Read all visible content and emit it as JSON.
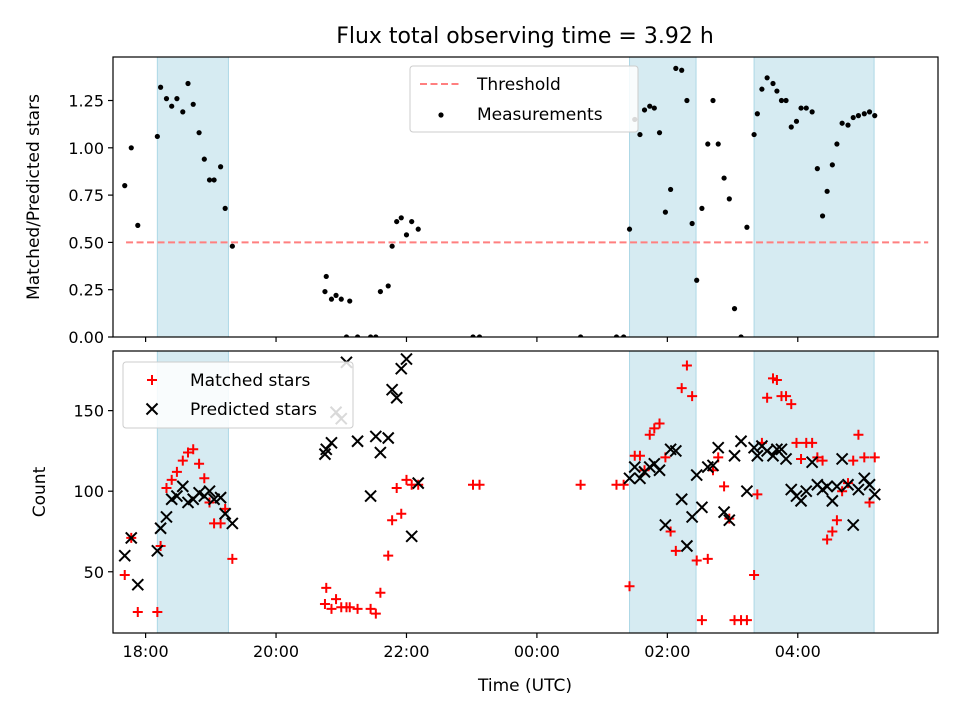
{
  "figure": {
    "title": "Flux total observing time = 3.92 h",
    "xlabel": "Time (UTC)",
    "xlim": [
      17.5,
      30.15
    ],
    "xticks": [
      {
        "value": 18,
        "label": "18:00"
      },
      {
        "value": 20,
        "label": "20:00"
      },
      {
        "value": 22,
        "label": "22:00"
      },
      {
        "value": 24,
        "label": "00:00"
      },
      {
        "value": 26,
        "label": "02:00"
      },
      {
        "value": 28,
        "label": "04:00"
      }
    ],
    "shaded_intervals": [
      [
        18.18,
        19.27
      ],
      [
        25.42,
        26.44
      ],
      [
        27.33,
        29.17
      ]
    ],
    "shade_color": "#add8e6"
  },
  "chart_data": [
    {
      "type": "scatter",
      "ylabel": "Matched/Predicted stars",
      "ylim": [
        0,
        1.48
      ],
      "yticks": [
        0.0,
        0.25,
        0.5,
        0.75,
        1.0,
        1.25
      ],
      "ytick_labels": [
        "0.00",
        "0.25",
        "0.50",
        "0.75",
        "1.00",
        "1.25"
      ],
      "legend_position": "top-center",
      "threshold": {
        "name": "Threshold",
        "value": 0.5,
        "x_range": [
          17.7,
          30.0
        ],
        "color": "#ff7f7f"
      },
      "series": [
        {
          "name": "Measurements",
          "color": "#000000",
          "x": [
            17.68,
            17.78,
            17.88,
            18.18,
            18.23,
            18.32,
            18.4,
            18.48,
            18.57,
            18.65,
            18.73,
            18.82,
            18.9,
            18.98,
            19.05,
            19.15,
            19.22,
            19.33,
            20.75,
            20.77,
            20.85,
            20.92,
            21.0,
            21.08,
            21.13,
            21.25,
            21.45,
            21.53,
            21.6,
            21.72,
            21.78,
            21.85,
            21.92,
            22.0,
            22.08,
            22.18,
            23.02,
            23.12,
            24.67,
            25.22,
            25.33,
            25.42,
            25.5,
            25.58,
            25.65,
            25.73,
            25.8,
            25.88,
            25.97,
            26.05,
            26.13,
            26.22,
            26.3,
            26.38,
            26.45,
            26.53,
            26.62,
            26.7,
            26.78,
            26.87,
            26.95,
            27.03,
            27.13,
            27.22,
            27.33,
            27.38,
            27.45,
            27.53,
            27.62,
            27.68,
            27.75,
            27.82,
            27.9,
            27.98,
            28.05,
            28.13,
            28.22,
            28.3,
            28.38,
            28.45,
            28.53,
            28.6,
            28.68,
            28.77,
            28.85,
            28.93,
            29.02,
            29.1,
            29.18
          ],
          "y": [
            0.8,
            1.0,
            0.59,
            1.06,
            1.32,
            1.26,
            1.22,
            1.26,
            1.19,
            1.34,
            1.23,
            1.08,
            0.94,
            0.83,
            0.83,
            0.9,
            0.68,
            0.48,
            0.24,
            0.32,
            0.2,
            0.22,
            0.2,
            0.0,
            0.19,
            0.0,
            0.0,
            0.0,
            0.24,
            0.27,
            0.48,
            0.61,
            0.63,
            0.54,
            0.61,
            0.57,
            0.0,
            0.0,
            0.0,
            0.0,
            0.0,
            0.57,
            1.15,
            1.07,
            1.2,
            1.22,
            1.21,
            1.08,
            0.66,
            0.78,
            1.42,
            1.41,
            1.25,
            0.6,
            0.3,
            0.68,
            1.02,
            1.25,
            1.02,
            0.84,
            0.73,
            0.15,
            0.0,
            0.58,
            1.07,
            1.18,
            1.31,
            1.37,
            1.34,
            1.3,
            1.25,
            1.25,
            1.11,
            1.14,
            1.21,
            1.21,
            1.19,
            0.89,
            0.64,
            0.77,
            0.91,
            1.02,
            1.13,
            1.12,
            1.16,
            1.17,
            1.18,
            1.19,
            1.17
          ]
        }
      ]
    },
    {
      "type": "scatter",
      "ylabel": "Count",
      "ylim": [
        12,
        187
      ],
      "yticks": [
        50,
        100,
        150
      ],
      "ytick_labels": [
        "50",
        "100",
        "150"
      ],
      "legend_position": "top-left",
      "series": [
        {
          "name": "Matched stars",
          "color": "#ff0000",
          "marker": "plus",
          "x": [
            17.68,
            17.78,
            17.88,
            18.18,
            18.23,
            18.32,
            18.4,
            18.48,
            18.57,
            18.65,
            18.73,
            18.82,
            18.9,
            18.98,
            19.05,
            19.15,
            19.22,
            19.33,
            20.75,
            20.77,
            20.85,
            20.92,
            21.0,
            21.08,
            21.13,
            21.25,
            21.45,
            21.53,
            21.6,
            21.72,
            21.78,
            21.85,
            21.92,
            22.0,
            22.08,
            22.18,
            23.02,
            23.12,
            24.67,
            25.22,
            25.33,
            25.42,
            25.5,
            25.58,
            25.65,
            25.73,
            25.8,
            25.88,
            25.97,
            26.05,
            26.13,
            26.22,
            26.3,
            26.38,
            26.45,
            26.53,
            26.62,
            26.7,
            26.78,
            26.87,
            26.95,
            27.03,
            27.13,
            27.22,
            27.33,
            27.38,
            27.45,
            27.53,
            27.62,
            27.68,
            27.75,
            27.82,
            27.9,
            27.98,
            28.05,
            28.13,
            28.22,
            28.3,
            28.38,
            28.45,
            28.53,
            28.6,
            28.68,
            28.77,
            28.85,
            28.93,
            29.02,
            29.1,
            29.18
          ],
          "y": [
            48,
            71,
            25,
            25,
            66,
            102,
            107,
            112,
            119,
            124,
            126,
            117,
            108,
            93,
            80,
            80,
            89,
            58,
            30,
            40,
            27,
            33,
            28,
            28,
            28,
            27,
            27,
            24,
            37,
            60,
            82,
            102,
            86,
            107,
            104,
            104,
            104,
            104,
            104,
            104,
            104,
            41,
            122,
            122,
            113,
            135,
            139,
            142,
            121,
            75,
            63,
            164,
            178,
            159,
            57,
            20,
            58,
            113,
            121,
            103,
            83,
            20,
            20,
            20,
            48,
            98,
            130,
            158,
            170,
            169,
            159,
            159,
            154,
            130,
            120,
            130,
            130,
            121,
            119,
            70,
            75,
            82,
            100,
            105,
            119,
            135,
            121,
            93,
            121
          ]
        },
        {
          "name": "Predicted stars",
          "color": "#000000",
          "marker": "x",
          "x": [
            17.68,
            17.78,
            17.88,
            18.18,
            18.23,
            18.32,
            18.4,
            18.48,
            18.57,
            18.65,
            18.73,
            18.82,
            18.9,
            18.98,
            19.05,
            19.15,
            19.22,
            19.33,
            20.75,
            20.77,
            20.85,
            20.92,
            21.0,
            21.08,
            21.25,
            21.45,
            21.53,
            21.6,
            21.72,
            21.78,
            21.85,
            21.92,
            22.0,
            22.08,
            22.18,
            25.42,
            25.5,
            25.58,
            25.65,
            25.73,
            25.8,
            25.88,
            25.97,
            26.05,
            26.13,
            26.22,
            26.3,
            26.38,
            26.45,
            26.53,
            26.62,
            26.7,
            26.78,
            26.87,
            26.95,
            27.03,
            27.13,
            27.22,
            27.33,
            27.38,
            27.45,
            27.53,
            27.62,
            27.68,
            27.75,
            27.82,
            27.9,
            27.98,
            28.05,
            28.13,
            28.22,
            28.3,
            28.38,
            28.45,
            28.53,
            28.6,
            28.68,
            28.77,
            28.85,
            28.93,
            29.02,
            29.1,
            29.18
          ],
          "y": [
            60,
            71,
            42,
            63,
            77,
            84,
            95,
            97,
            103,
            93,
            95,
            99,
            97,
            100,
            95,
            96,
            86,
            80,
            123,
            126,
            130,
            149,
            145,
            180,
            131,
            97,
            134,
            124,
            133,
            163,
            158,
            176,
            182,
            72,
            105,
            108,
            115,
            108,
            112,
            115,
            117,
            113,
            79,
            126,
            125,
            95,
            66,
            84,
            110,
            90,
            115,
            116,
            127,
            87,
            82,
            122,
            131,
            100,
            127,
            122,
            128,
            125,
            122,
            126,
            126,
            120,
            101,
            97,
            94,
            100,
            118,
            104,
            101,
            103,
            94,
            103,
            120,
            104,
            79,
            101,
            108,
            104,
            98
          ]
        }
      ]
    }
  ]
}
